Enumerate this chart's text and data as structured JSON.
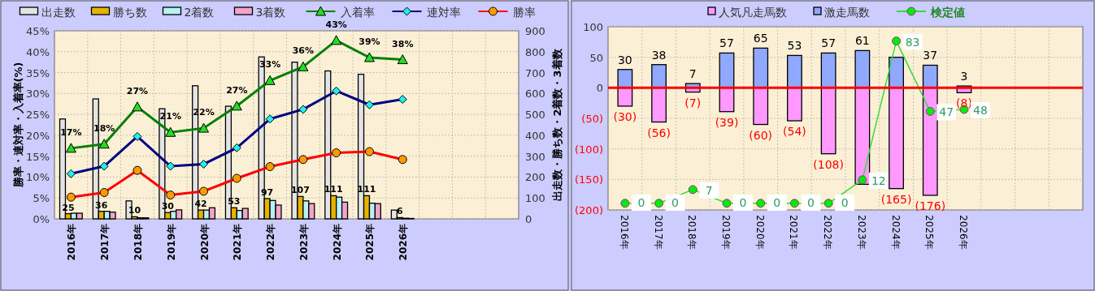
{
  "chart_data": [
    {
      "type": "bar",
      "categories": [
        "2016年",
        "2017年",
        "2018年",
        "2019年",
        "2020年",
        "2021年",
        "2022年",
        "2023年",
        "2024年",
        "2025年",
        "2026年",
        null,
        null,
        null
      ],
      "series": [
        {
          "name": "出走数",
          "color": "#e4e4e4",
          "axis": "y2",
          "values": [
            478,
            574,
            86,
            527,
            637,
            539,
            775,
            750,
            708,
            692,
            42,
            null,
            null,
            null
          ]
        },
        {
          "name": "勝ち数",
          "color": "#e6b400",
          "axis": "y2",
          "values": [
            25,
            36,
            10,
            30,
            42,
            53,
            97,
            107,
            111,
            111,
            6,
            null,
            null,
            null
          ],
          "value_labels": [
            "25",
            "36",
            "10",
            "30",
            "42",
            "53",
            "97",
            "107",
            "111",
            "111",
            "6",
            null,
            null,
            null
          ]
        },
        {
          "name": "2着数",
          "color": "#b8f2f2",
          "axis": "y2",
          "values": [
            27,
            36,
            5,
            36,
            42,
            40,
            88,
            86,
            104,
            75,
            3,
            null,
            null,
            null
          ]
        },
        {
          "name": "3着数",
          "color": "#f2a4cc",
          "axis": "y2",
          "values": [
            27,
            32,
            5,
            43,
            53,
            50,
            66,
            73,
            80,
            73,
            2,
            null,
            null,
            null
          ]
        },
        {
          "name": "入着率",
          "type": "line",
          "color": "#008000",
          "marker": "triangle",
          "values": [
            16.9,
            17.9,
            26.8,
            20.7,
            21.7,
            27.0,
            33.1,
            36.4,
            42.7,
            38.6,
            38.1,
            null,
            null,
            null
          ],
          "value_labels": [
            "17%",
            "18%",
            "27%",
            "21%",
            "22%",
            "27%",
            "33%",
            "36%",
            "43%",
            "39%",
            "38%",
            null,
            null,
            null
          ]
        },
        {
          "name": "連対率",
          "type": "line",
          "color": "#000080",
          "marker": "diamond",
          "values": [
            10.8,
            12.6,
            19.7,
            12.6,
            13.1,
            17.0,
            23.9,
            26.2,
            30.6,
            27.3,
            28.6,
            null,
            null,
            null
          ]
        },
        {
          "name": "勝率",
          "type": "line",
          "color": "#ff0000",
          "marker": "circle",
          "values": [
            5.2,
            6.3,
            11.6,
            5.7,
            6.6,
            9.7,
            12.5,
            14.2,
            15.8,
            16.1,
            14.2,
            null,
            null,
            null
          ]
        }
      ],
      "ylabel": "勝率・連対率・入着率(%)",
      "y2label": "出走数・勝ち数・2着数・3着数",
      "ylim": [
        0,
        45
      ],
      "yticks": [
        {
          "value": 0,
          "label": "0%"
        },
        {
          "value": 5,
          "label": "5%"
        },
        {
          "value": 10,
          "label": "10%"
        },
        {
          "value": 15,
          "label": "15%"
        },
        {
          "value": 20,
          "label": "20%"
        },
        {
          "value": 25,
          "label": "25%"
        },
        {
          "value": 30,
          "label": "30%"
        },
        {
          "value": 35,
          "label": "35%"
        },
        {
          "value": 40,
          "label": "40%"
        },
        {
          "value": 45,
          "label": "45%"
        }
      ],
      "y2lim": [
        0,
        900
      ],
      "y2ticks": [
        0,
        100,
        200,
        300,
        400,
        500,
        600,
        700,
        800,
        900
      ],
      "grid": true,
      "legend": "top"
    },
    {
      "type": "bar",
      "stacked": true,
      "categories": [
        "2016年",
        "2017年",
        "2018年",
        "2019年",
        "2020年",
        "2021年",
        "2022年",
        "2023年",
        "2024年",
        "2025年",
        "2026年",
        null,
        null,
        null
      ],
      "series": [
        {
          "name": "人気凡走馬数",
          "color": "#ff99ff",
          "values": [
            -30,
            -56,
            -7,
            -39,
            -60,
            -54,
            -108,
            -158,
            -165,
            -176,
            -8,
            null,
            null,
            null
          ],
          "value_labels": [
            "(30)",
            "(56)",
            "(7)",
            "(39)",
            "(60)",
            "(54)",
            "(108)",
            null,
            "(165)",
            "(176)",
            "(8)",
            null,
            null,
            null
          ]
        },
        {
          "name": "激走馬数",
          "color": "#90a8ff",
          "values": [
            30,
            38,
            7,
            57,
            65,
            53,
            57,
            61,
            50,
            37,
            3,
            null,
            null,
            null
          ],
          "value_labels": [
            "30",
            "38",
            "7",
            "57",
            "65",
            "53",
            "57",
            "61",
            null,
            "37",
            "3",
            null,
            null,
            null
          ]
        },
        {
          "name": "検定値",
          "type": "line",
          "axis": "y2",
          "color": "#33dd33",
          "marker": "circle",
          "values": [
            0,
            0,
            7,
            0,
            0,
            0,
            0,
            12,
            83,
            47,
            48,
            null,
            null,
            null
          ],
          "value_labels": [
            "0",
            "0",
            "7",
            "0",
            "0",
            "0",
            "0",
            "12",
            "83",
            "47",
            "48",
            null,
            null,
            null
          ]
        }
      ],
      "ylim": [
        -200,
        100
      ],
      "yticks": [
        {
          "value": -200,
          "label": "(200)"
        },
        {
          "value": -150,
          "label": "(150)"
        },
        {
          "value": -100,
          "label": "(100)"
        },
        {
          "value": -50,
          "label": "(50)"
        },
        0,
        50,
        100
      ],
      "y2lim": [
        -3.4,
        90.3
      ],
      "ref_lines": [
        {
          "axis": "y",
          "value": 0,
          "color": "#ff0000"
        }
      ],
      "grid": true,
      "legend": "top"
    }
  ]
}
